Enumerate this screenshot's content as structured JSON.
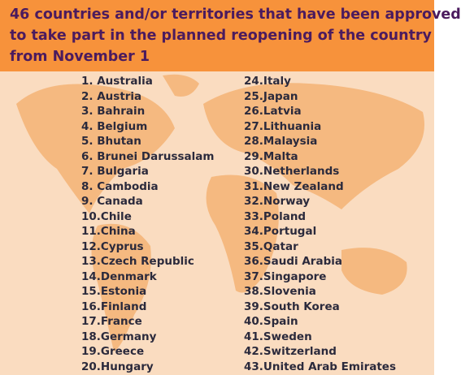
{
  "header": {
    "title_lines": [
      "46 countries and/or territories that have been approved",
      "to take part in the planned reopening of the country",
      "from November 1"
    ]
  },
  "list": {
    "column1": [
      "1. Australia",
      "2. Austria",
      "3. Bahrain",
      "4. Belgium",
      "5. Bhutan",
      "6. Brunei Darussalam",
      "7. Bulgaria",
      "8. Cambodia",
      "9. Canada",
      "10.Chile",
      "11.China",
      "12.Cyprus",
      "13.Czech Republic",
      "14.Denmark",
      "15.Estonia",
      "16.Finland",
      "17.France",
      "18.Germany",
      "19.Greece",
      "20.Hungary"
    ],
    "column2": [
      "24.Italy",
      "25.Japan",
      "26.Latvia",
      "27.Lithuania",
      "28.Malaysia",
      "29.Malta",
      "30.Netherlands",
      "31.New Zealand",
      "32.Norway",
      "33.Poland",
      "34.Portugal",
      "35.Qatar",
      "36.Saudi Arabia",
      "37.Singapore",
      "38.Slovenia",
      "39.South Korea",
      "40.Spain",
      "41.Sweden",
      "42.Switzerland",
      "43.United Arab Emirates"
    ]
  }
}
